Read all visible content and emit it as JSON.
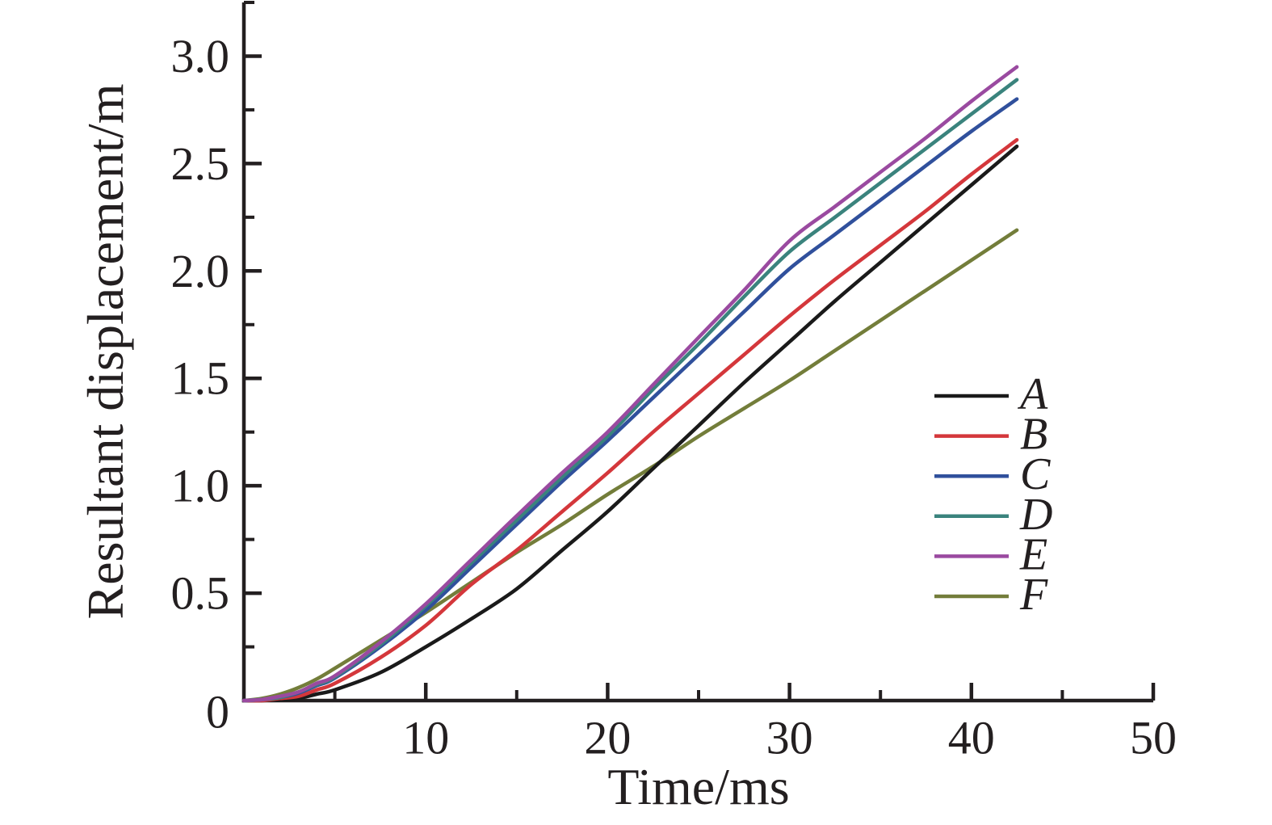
{
  "figure": {
    "background": "#ffffff",
    "axis_color": "#231f20"
  },
  "chart_data": {
    "type": "line",
    "title": "",
    "xlabel": "Time/ms",
    "ylabel": "Resultant displacement/m",
    "xlim": [
      0,
      50
    ],
    "ylim": [
      0,
      3.25
    ],
    "grid": false,
    "legend_position": "right-middle",
    "x_ticks": {
      "major_values": [
        10,
        20,
        30,
        40,
        50
      ],
      "major_labels": [
        "10",
        "20",
        "30",
        "40",
        "50"
      ],
      "minor_values": [
        5,
        15,
        25,
        35,
        45
      ]
    },
    "y_ticks": {
      "major_values": [
        0,
        0.5,
        1.0,
        1.5,
        2.0,
        2.5,
        3.0
      ],
      "major_labels": [
        "0",
        "0.5",
        "1.0",
        "1.5",
        "2.0",
        "2.5",
        "3.0"
      ],
      "minor_values": [
        0.25,
        0.75,
        1.25,
        1.75,
        2.25,
        2.75,
        3.25
      ]
    },
    "x": [
      0,
      1,
      2,
      3,
      4,
      5,
      7.5,
      10,
      12.5,
      15,
      17.5,
      20,
      22.5,
      25,
      27.5,
      30,
      32.5,
      35,
      37.5,
      40,
      42.5
    ],
    "series": [
      {
        "name": "A",
        "color": "#1a1a1a",
        "values": [
          0,
          0,
          0.005,
          0.01,
          0.03,
          0.05,
          0.13,
          0.25,
          0.38,
          0.52,
          0.7,
          0.88,
          1.08,
          1.28,
          1.48,
          1.67,
          1.86,
          2.04,
          2.22,
          2.4,
          2.58
        ]
      },
      {
        "name": "B",
        "color": "#d4373b",
        "values": [
          0,
          0,
          0.01,
          0.02,
          0.05,
          0.08,
          0.2,
          0.35,
          0.54,
          0.7,
          0.88,
          1.06,
          1.25,
          1.43,
          1.61,
          1.79,
          1.96,
          2.12,
          2.28,
          2.45,
          2.61
        ]
      },
      {
        "name": "C",
        "color": "#30509c",
        "values": [
          0,
          0.005,
          0.015,
          0.035,
          0.07,
          0.105,
          0.25,
          0.42,
          0.62,
          0.82,
          1.02,
          1.21,
          1.41,
          1.61,
          1.81,
          2.01,
          2.17,
          2.33,
          2.49,
          2.65,
          2.8
        ]
      },
      {
        "name": "D",
        "color": "#3a837d",
        "values": [
          0,
          0.005,
          0.015,
          0.04,
          0.075,
          0.11,
          0.26,
          0.44,
          0.64,
          0.84,
          1.04,
          1.23,
          1.45,
          1.66,
          1.88,
          2.09,
          2.25,
          2.41,
          2.57,
          2.73,
          2.89
        ]
      },
      {
        "name": "E",
        "color": "#9a4aa0",
        "values": [
          0,
          0.005,
          0.02,
          0.04,
          0.08,
          0.115,
          0.27,
          0.45,
          0.655,
          0.86,
          1.06,
          1.25,
          1.47,
          1.69,
          1.91,
          2.14,
          2.3,
          2.46,
          2.62,
          2.79,
          2.95
        ]
      },
      {
        "name": "F",
        "color": "#737d3a",
        "values": [
          0,
          0.01,
          0.03,
          0.06,
          0.1,
          0.15,
          0.28,
          0.41,
          0.55,
          0.69,
          0.82,
          0.96,
          1.09,
          1.23,
          1.36,
          1.49,
          1.63,
          1.77,
          1.91,
          2.05,
          2.19
        ]
      }
    ],
    "legend_entries": [
      "A",
      "B",
      "C",
      "D",
      "E",
      "F"
    ],
    "draw_order": [
      "F",
      "A",
      "B",
      "C",
      "D",
      "E"
    ]
  }
}
